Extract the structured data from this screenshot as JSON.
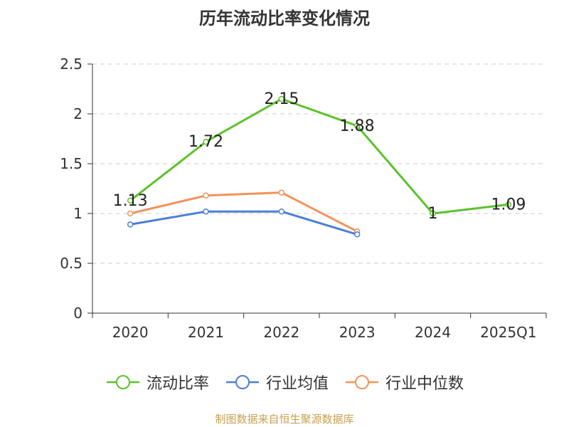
{
  "chart_data": {
    "type": "line",
    "title": "历年流动比率变化情况",
    "categories": [
      "2020",
      "2021",
      "2022",
      "2023",
      "2024",
      "2025Q1"
    ],
    "ylim": [
      0,
      2.5
    ],
    "yticks": [
      "0",
      "0.5",
      "1",
      "1.5",
      "2",
      "2.5"
    ],
    "grid": true,
    "legend_position": "bottom",
    "series": [
      {
        "name": "流动比率",
        "color": "#5bc22a",
        "values": [
          1.13,
          1.72,
          2.15,
          1.88,
          1.0,
          1.09
        ],
        "labels": [
          "1.13",
          "1.72",
          "2.15",
          "1.88",
          "1",
          "1.09"
        ]
      },
      {
        "name": "行业均值",
        "color": "#4a7fd8",
        "values": [
          0.89,
          1.02,
          1.02,
          0.79,
          null,
          null
        ]
      },
      {
        "name": "行业中位数",
        "color": "#f4925a",
        "values": [
          1.0,
          1.18,
          1.21,
          0.82,
          null,
          null
        ]
      }
    ]
  },
  "source": "制图数据来自恒生聚源数据库"
}
